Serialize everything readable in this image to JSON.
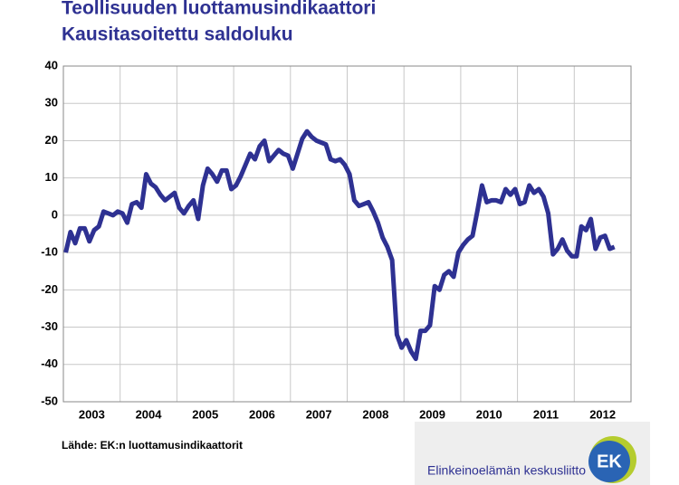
{
  "chart_data": {
    "type": "line",
    "title": "Teollisuuden luottamusindikaattori",
    "subtitle": "Kausitasoitettu saldoluku",
    "source": "Lähde: EK:n luottamusindikaattorit",
    "logo_text": "Elinkeinoelämän keskusliitto",
    "logo_mark": "EK",
    "categories": [
      null,
      null,
      null,
      null,
      null,
      "2003",
      null,
      null,
      null,
      null,
      null,
      null,
      null,
      null,
      null,
      null,
      null,
      "2004",
      null,
      null,
      null,
      null,
      null,
      null,
      null,
      null,
      null,
      null,
      null,
      "2005",
      null,
      null,
      null,
      null,
      null,
      null,
      null,
      null,
      null,
      null,
      null,
      "2006",
      null,
      null,
      null,
      null,
      null,
      null,
      null,
      null,
      null,
      null,
      null,
      "2007",
      null,
      null,
      null,
      null,
      null,
      null,
      null,
      null,
      null,
      null,
      null,
      "2008",
      null,
      null,
      null,
      null,
      null,
      null,
      null,
      null,
      null,
      null,
      null,
      "2009",
      null,
      null,
      null,
      null,
      null,
      null,
      null,
      null,
      null,
      null,
      null,
      "2010",
      null,
      null,
      null,
      null,
      null,
      null,
      null,
      null,
      null,
      null,
      null,
      "2011",
      null,
      null,
      null,
      null,
      null,
      null,
      null,
      null,
      null,
      null,
      null,
      "2012",
      null,
      null,
      null,
      null,
      null,
      null
    ],
    "series": [
      {
        "name": "Teollisuuden luottamusindikaattori",
        "color": "#2e3192",
        "values": [
          -10,
          -4.5,
          -7.5,
          -3.5,
          -3.5,
          -7,
          -4,
          -3,
          1,
          0.5,
          0,
          1,
          0.5,
          -2,
          3,
          3.5,
          2,
          11,
          8.5,
          7.5,
          5.5,
          4,
          5,
          6,
          2,
          0.5,
          2.5,
          4,
          -1,
          8,
          12.5,
          11,
          9,
          12,
          12,
          7,
          8,
          10.5,
          13.5,
          16.5,
          15,
          18.5,
          20,
          14.5,
          16,
          17.5,
          16.5,
          16,
          12.5,
          16.5,
          20.5,
          22.5,
          21,
          20,
          19.5,
          19,
          15,
          14.5,
          15,
          13.5,
          11,
          4,
          2.5,
          3,
          3.5,
          1,
          -2,
          -6,
          -8.5,
          -12,
          -32,
          -35.5,
          -33.5,
          -36.5,
          -38.5,
          -31,
          -31,
          -29.5,
          -19,
          -20,
          -16,
          -15,
          -16.5,
          -10,
          -8,
          -6.5,
          -5.5,
          1,
          8,
          3.5,
          4,
          4,
          3.5,
          7,
          5.5,
          7,
          3,
          3.5,
          8,
          6,
          7,
          5,
          0.5,
          -10.5,
          -9,
          -6.5,
          -9.5,
          -11,
          -11,
          -3,
          -4,
          -1,
          -9,
          -6,
          -5.5,
          -9,
          -8.5,
          null,
          null,
          null
        ]
      }
    ],
    "ylim": [
      -50,
      40
    ],
    "yticks": [
      -50,
      -40,
      -30,
      -20,
      -10,
      0,
      10,
      20,
      30,
      40
    ],
    "grid": true
  }
}
